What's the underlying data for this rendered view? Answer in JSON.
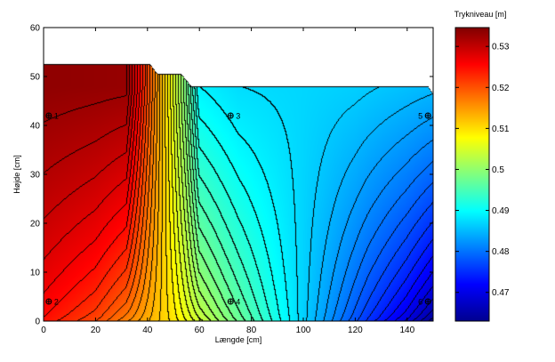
{
  "chart_data": {
    "type": "heatmap",
    "subtype": "filled-contour",
    "xlabel": "Længde [cm]",
    "ylabel": "Højde [cm]",
    "xlim": [
      0,
      150
    ],
    "ylim": [
      0,
      60
    ],
    "xticks": [
      "0",
      "20",
      "40",
      "60",
      "80",
      "100",
      "120",
      "140"
    ],
    "yticks": [
      "0",
      "10",
      "20",
      "30",
      "40",
      "50",
      "60"
    ],
    "colorbar": {
      "title": "Trykniveau [m]",
      "range": [
        0.463,
        0.5346
      ],
      "ticks": [
        "0.47",
        "0.48",
        "0.49",
        "0.5",
        "0.51",
        "0.52",
        "0.53"
      ],
      "colormap": "jet"
    },
    "contour_step": 0.0015,
    "surface_profile": [
      [
        0,
        52.5
      ],
      [
        41,
        52.5
      ],
      [
        44,
        50.5
      ],
      [
        53,
        50.5
      ],
      [
        57,
        48
      ],
      [
        148,
        48
      ],
      [
        150,
        46.5
      ]
    ],
    "bottom_profile": [
      [
        0,
        0.5245
      ],
      [
        20,
        0.5205
      ],
      [
        35,
        0.515
      ],
      [
        50,
        0.5095
      ],
      [
        70,
        0.5
      ],
      [
        95,
        0.489
      ],
      [
        110,
        0.482
      ],
      [
        125,
        0.475
      ],
      [
        140,
        0.469
      ],
      [
        150,
        0.464
      ]
    ],
    "top_profile": [
      [
        0,
        0.5335
      ],
      [
        32,
        0.533
      ],
      [
        36,
        0.527
      ],
      [
        45,
        0.513
      ],
      [
        55,
        0.498
      ],
      [
        60,
        0.489
      ],
      [
        75,
        0.4875
      ],
      [
        100,
        0.487
      ],
      [
        120,
        0.4865
      ],
      [
        140,
        0.4855
      ],
      [
        150,
        0.485
      ]
    ],
    "sensors": [
      {
        "label": "1",
        "x": 2,
        "y": 42,
        "side": "right"
      },
      {
        "label": "2",
        "x": 2,
        "y": 4,
        "side": "right"
      },
      {
        "label": "3",
        "x": 72,
        "y": 42,
        "side": "right"
      },
      {
        "label": "4",
        "x": 72,
        "y": 4,
        "side": "right"
      },
      {
        "label": "5",
        "x": 148,
        "y": 42,
        "side": "left"
      },
      {
        "label": "6",
        "x": 148,
        "y": 4,
        "side": "left"
      }
    ]
  }
}
